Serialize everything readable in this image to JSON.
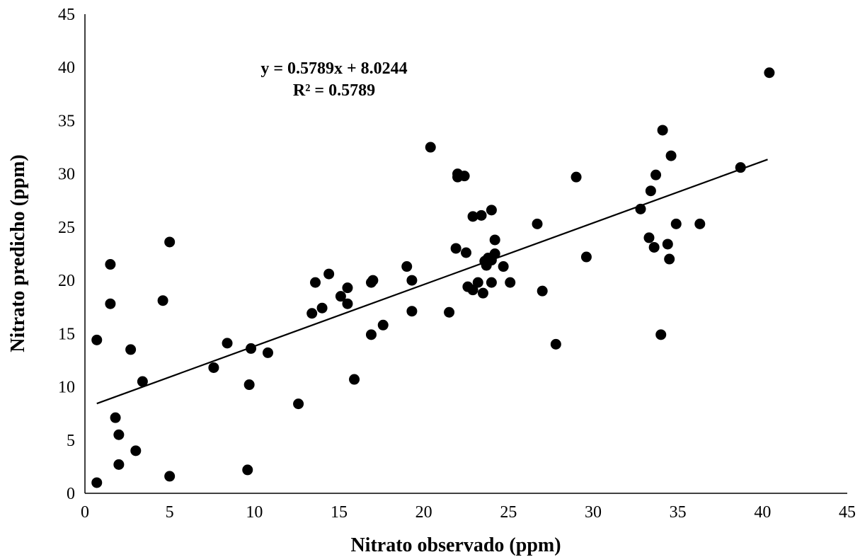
{
  "chart_data": {
    "type": "scatter",
    "title": "",
    "xlabel": "Nitrato observado (ppm)",
    "ylabel": "Nitrato predicho (ppm)",
    "xlim": [
      0,
      45
    ],
    "ylim": [
      0,
      45
    ],
    "xticks": [
      "0",
      "5",
      "10",
      "15",
      "20",
      "25",
      "30",
      "35",
      "40",
      "45"
    ],
    "yticks": [
      "0",
      "5",
      "10",
      "15",
      "20",
      "25",
      "30",
      "35",
      "40",
      "45"
    ],
    "grid": false,
    "legend": "none",
    "marker_color": "#000000",
    "trendline": {
      "slope": 0.5789,
      "intercept": 8.0244,
      "x_range": [
        0.7,
        40.3
      ],
      "equation": "y = 0.5789x + 8.0244",
      "r2_label": "R² = 0.5789"
    },
    "points": [
      [
        0.7,
        14.4
      ],
      [
        0.7,
        1.0
      ],
      [
        1.5,
        21.5
      ],
      [
        1.5,
        17.8
      ],
      [
        1.8,
        7.1
      ],
      [
        2.0,
        5.5
      ],
      [
        2.0,
        2.7
      ],
      [
        2.7,
        13.5
      ],
      [
        3.0,
        4.0
      ],
      [
        3.4,
        10.5
      ],
      [
        4.6,
        18.1
      ],
      [
        5.0,
        23.6
      ],
      [
        5.0,
        1.6
      ],
      [
        7.6,
        11.8
      ],
      [
        8.4,
        14.1
      ],
      [
        9.6,
        2.2
      ],
      [
        9.7,
        10.2
      ],
      [
        9.8,
        13.6
      ],
      [
        10.8,
        13.2
      ],
      [
        12.6,
        8.4
      ],
      [
        13.4,
        16.9
      ],
      [
        13.6,
        19.8
      ],
      [
        14.0,
        17.4
      ],
      [
        14.4,
        20.6
      ],
      [
        15.1,
        18.5
      ],
      [
        15.5,
        19.3
      ],
      [
        15.5,
        17.8
      ],
      [
        15.9,
        10.7
      ],
      [
        17.0,
        20.0
      ],
      [
        16.9,
        19.8
      ],
      [
        16.9,
        14.9
      ],
      [
        17.6,
        15.8
      ],
      [
        19.0,
        21.3
      ],
      [
        19.3,
        20.0
      ],
      [
        19.3,
        17.1
      ],
      [
        20.4,
        32.5
      ],
      [
        21.5,
        17.0
      ],
      [
        21.9,
        23.0
      ],
      [
        22.0,
        29.7
      ],
      [
        22.0,
        30.0
      ],
      [
        22.4,
        29.8
      ],
      [
        22.5,
        22.6
      ],
      [
        22.6,
        19.4
      ],
      [
        22.9,
        26.0
      ],
      [
        22.9,
        19.1
      ],
      [
        23.2,
        19.8
      ],
      [
        23.4,
        26.1
      ],
      [
        23.5,
        18.8
      ],
      [
        23.6,
        21.8
      ],
      [
        23.7,
        21.4
      ],
      [
        23.8,
        22.1
      ],
      [
        24.0,
        21.9
      ],
      [
        24.0,
        19.8
      ],
      [
        24.0,
        26.6
      ],
      [
        24.2,
        23.8
      ],
      [
        24.2,
        22.5
      ],
      [
        24.7,
        21.3
      ],
      [
        25.1,
        19.8
      ],
      [
        26.7,
        25.3
      ],
      [
        27.0,
        19.0
      ],
      [
        27.8,
        14.0
      ],
      [
        29.0,
        29.7
      ],
      [
        29.6,
        22.2
      ],
      [
        32.8,
        26.7
      ],
      [
        33.3,
        24.0
      ],
      [
        33.4,
        28.4
      ],
      [
        33.6,
        23.1
      ],
      [
        33.7,
        29.9
      ],
      [
        34.0,
        14.9
      ],
      [
        34.1,
        34.1
      ],
      [
        34.4,
        23.4
      ],
      [
        34.5,
        22.0
      ],
      [
        34.6,
        31.7
      ],
      [
        34.9,
        25.3
      ],
      [
        36.3,
        25.3
      ],
      [
        38.7,
        30.6
      ],
      [
        40.4,
        39.5
      ]
    ]
  }
}
